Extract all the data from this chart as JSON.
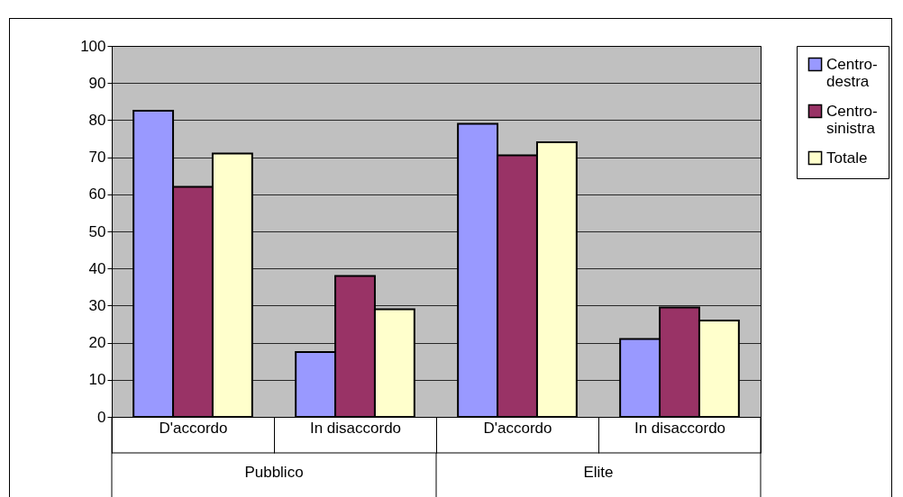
{
  "chart_data": {
    "type": "bar",
    "categories": [
      "D'accordo",
      "In disaccordo",
      "D'accordo",
      "In disaccordo"
    ],
    "annotations": [
      "Pubblico",
      "Elite"
    ],
    "series": [
      {
        "name": "Centro-destra",
        "color": "#9999ff",
        "values": [
          82.5,
          17.5,
          79,
          21
        ]
      },
      {
        "name": "Centro-sinistra",
        "color": "#993366",
        "values": [
          62,
          38,
          70.5,
          29.5
        ]
      },
      {
        "name": "Totale",
        "color": "#ffffcc",
        "values": [
          71,
          29,
          74,
          26
        ]
      }
    ],
    "ylim": [
      0,
      100
    ],
    "yticks": [
      0,
      10,
      20,
      30,
      40,
      50,
      60,
      70,
      80,
      90,
      100
    ],
    "grid": "y",
    "legend": "right"
  }
}
